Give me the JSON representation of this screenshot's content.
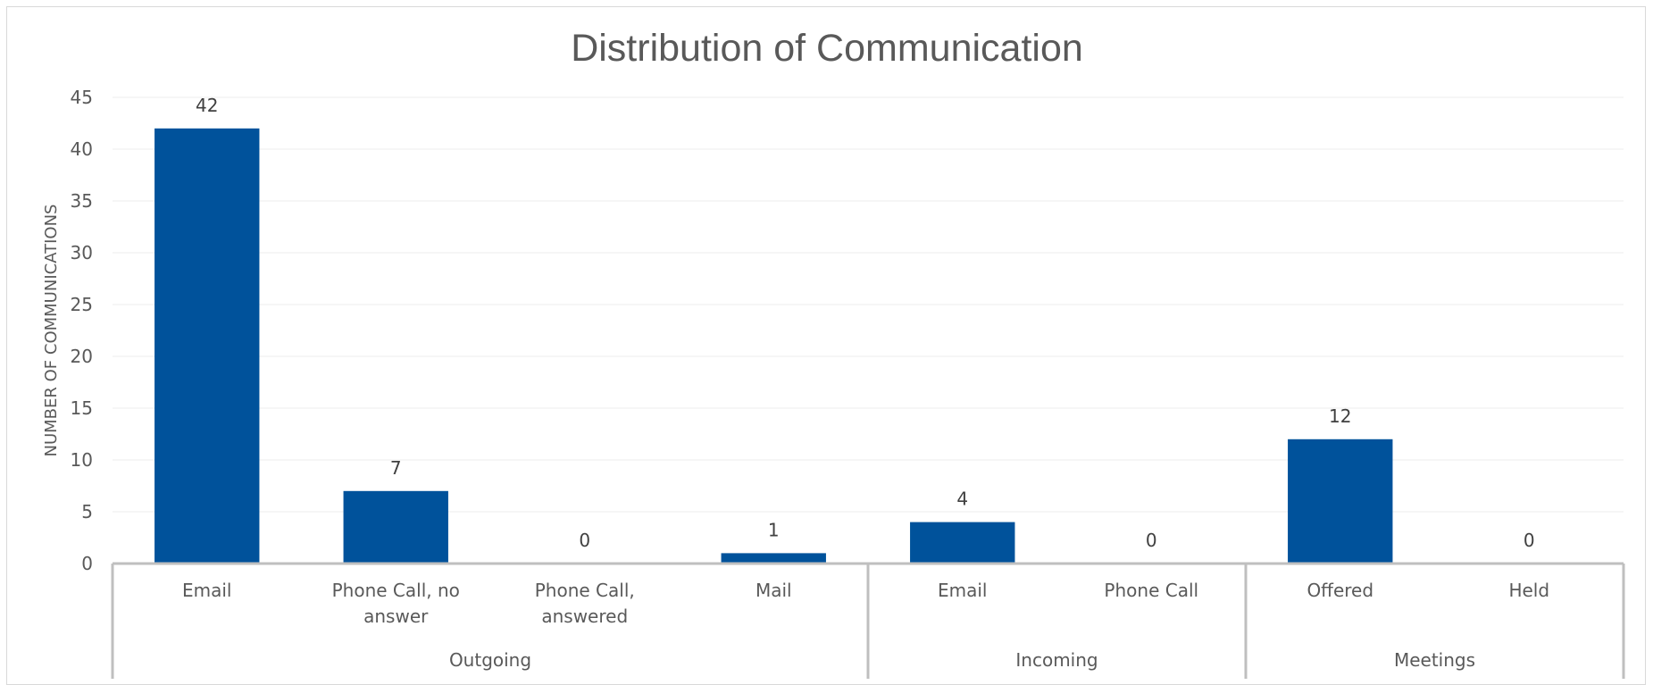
{
  "chart_data": {
    "type": "bar",
    "title": "Distribution of Communication",
    "ylabel": "NUMBER OF COMMUNICATIONS",
    "xlabel": "",
    "ylim": [
      0,
      45
    ],
    "yticks": [
      0,
      5,
      10,
      15,
      20,
      25,
      30,
      35,
      40,
      45
    ],
    "grid": true,
    "legend": "none",
    "bar_color": "#00529b",
    "groups": [
      {
        "label": "Outgoing",
        "categories": [
          {
            "label": [
              "Email"
            ],
            "value": 42
          },
          {
            "label": [
              "Phone Call, no",
              "answer"
            ],
            "value": 7
          },
          {
            "label": [
              "Phone Call,",
              "answered"
            ],
            "value": 0
          },
          {
            "label": [
              "Mail"
            ],
            "value": 1
          }
        ]
      },
      {
        "label": "Incoming",
        "categories": [
          {
            "label": [
              "Email"
            ],
            "value": 4
          },
          {
            "label": [
              "Phone Call"
            ],
            "value": 0
          }
        ]
      },
      {
        "label": "Meetings",
        "categories": [
          {
            "label": [
              "Offered"
            ],
            "value": 12
          },
          {
            "label": [
              "Held"
            ],
            "value": 0
          }
        ]
      }
    ]
  }
}
